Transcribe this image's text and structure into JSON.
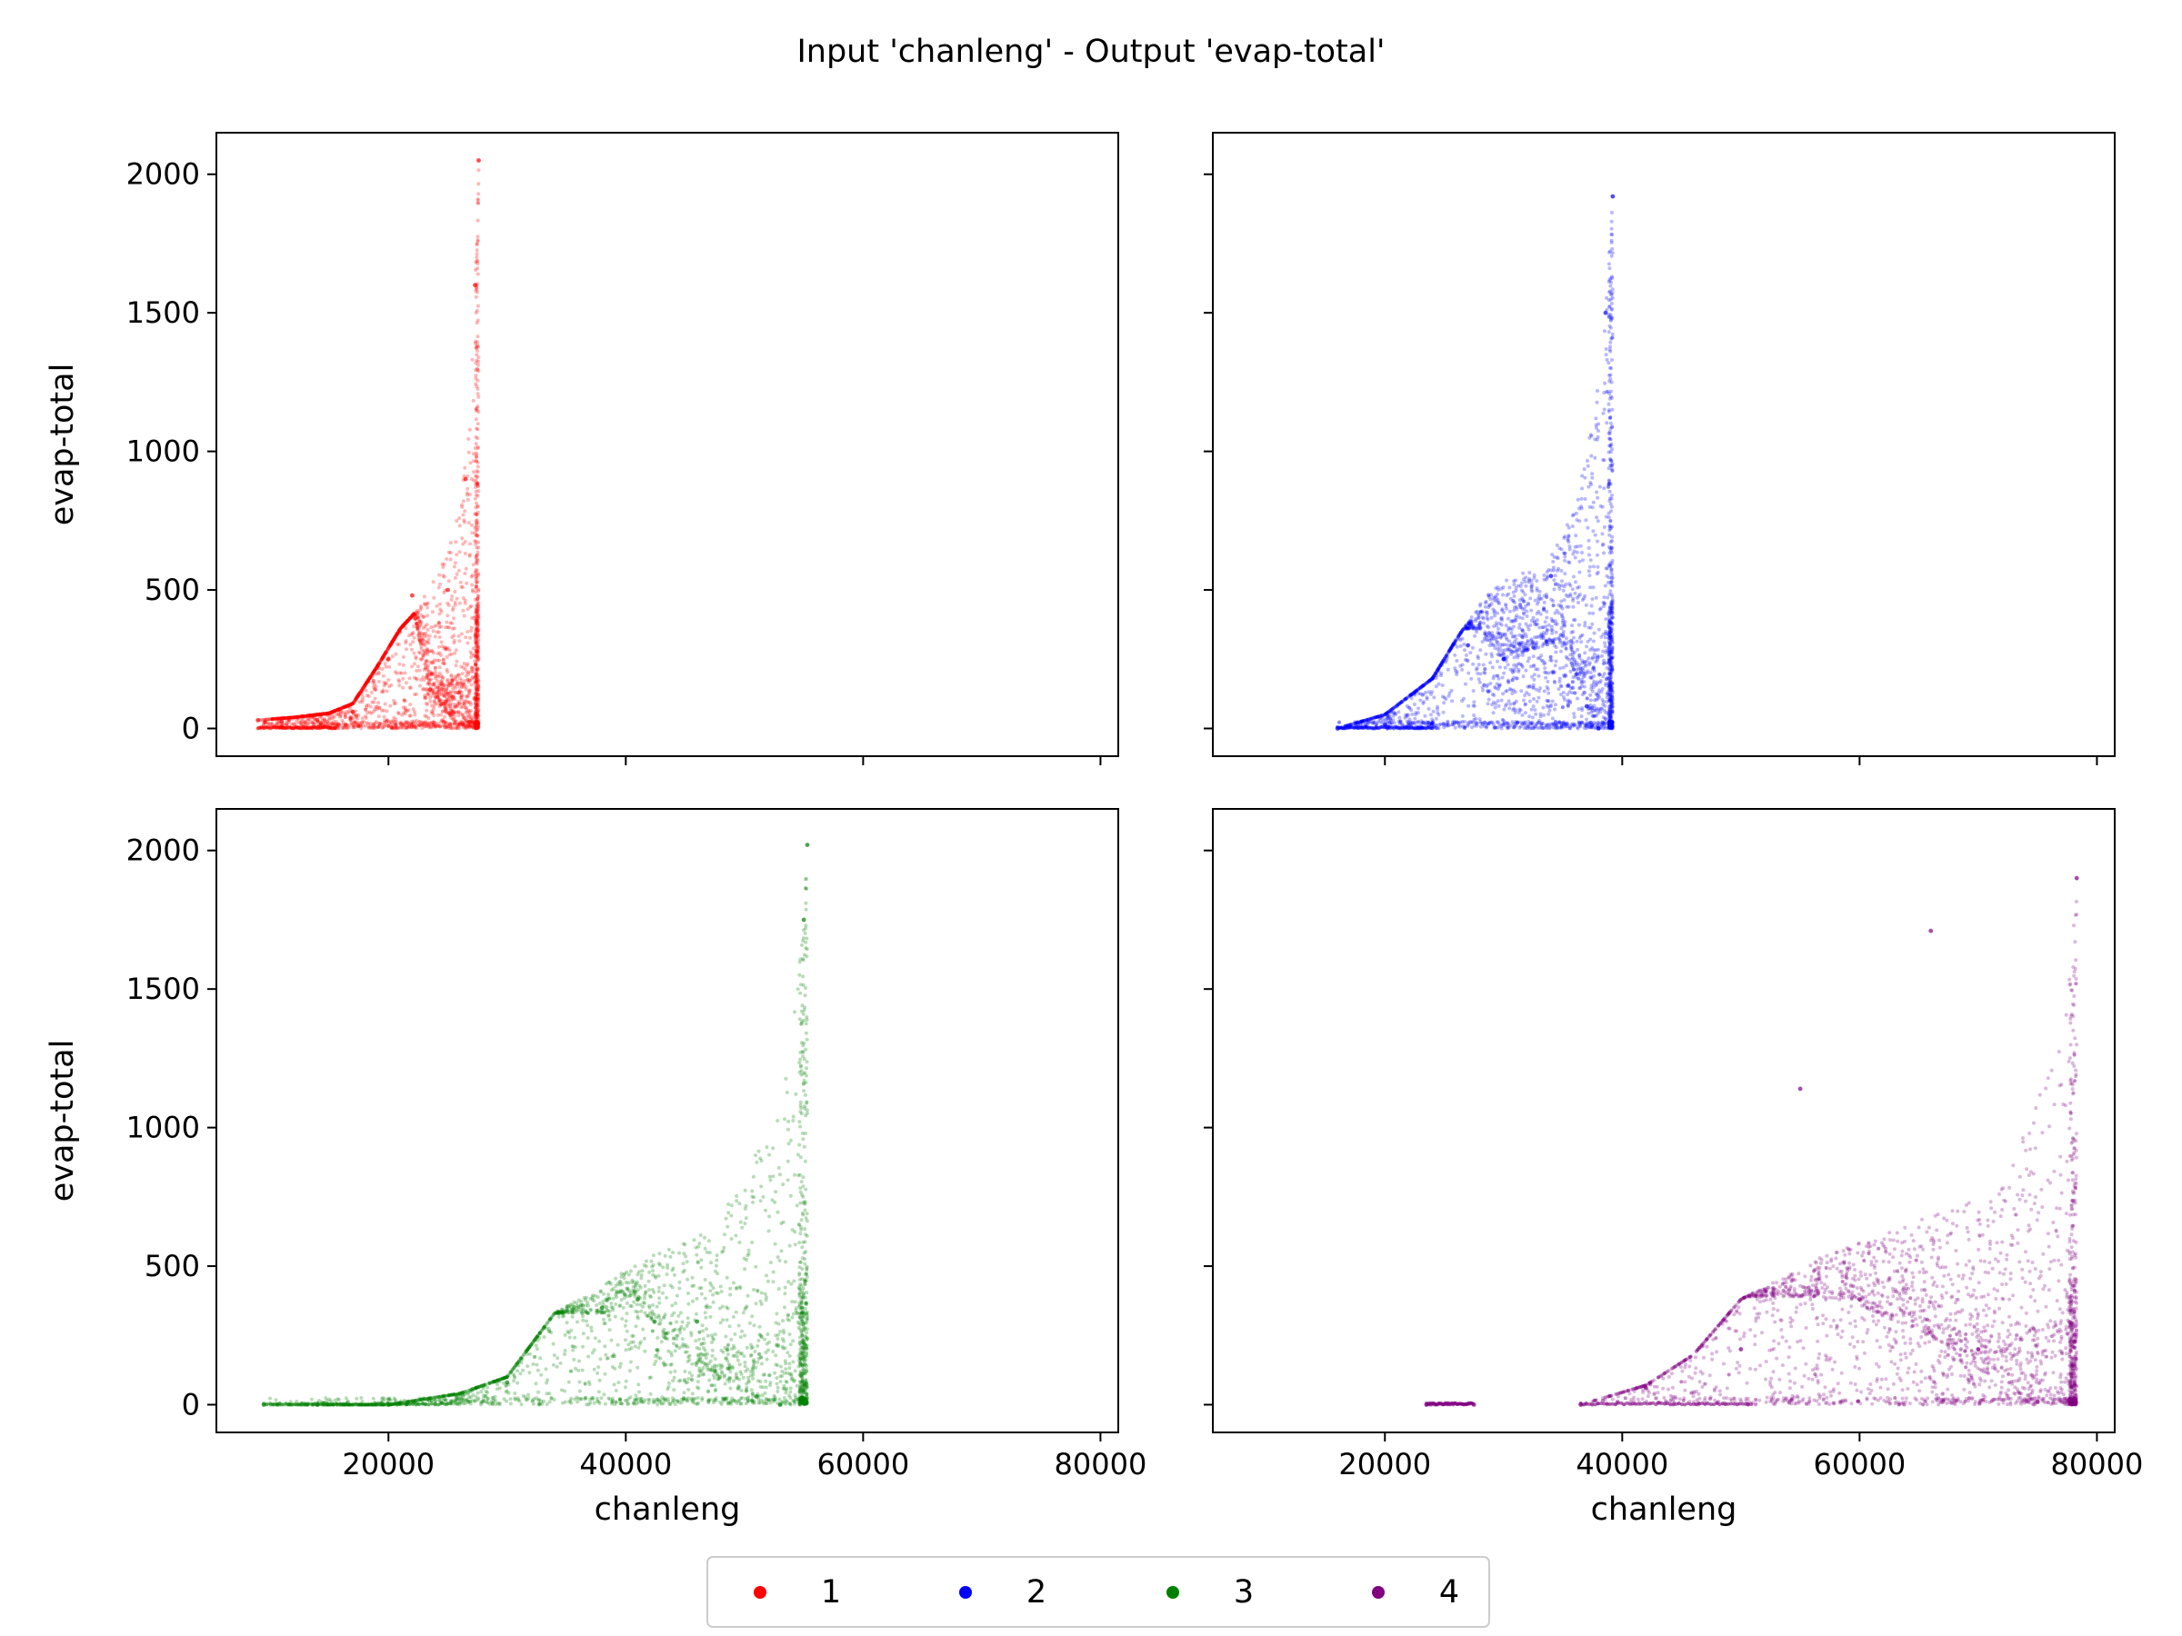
{
  "title": "Input 'chanleng' - Output 'evap-total'",
  "xlabel": "chanleng",
  "ylabel": "evap-total",
  "x_ticks": [
    20000,
    40000,
    60000,
    80000
  ],
  "y_ticks": [
    0,
    500,
    1000,
    1500,
    2000
  ],
  "legend": {
    "placement": "bottom-center",
    "entries": [
      "1",
      "2",
      "3",
      "4"
    ]
  },
  "chart_data": {
    "type": "scatter",
    "title": "Input 'chanleng' - Output 'evap-total'",
    "xlabel": "chanleng",
    "ylabel": "evap-total",
    "xlim": [
      5500,
      81500
    ],
    "ylim": [
      -100,
      2150
    ],
    "shared_x": true,
    "shared_y": true,
    "grid": false,
    "panels": [
      {
        "name": "1",
        "color": "#ff0000",
        "show_xlabel": false,
        "show_ylabel": true,
        "envelope": [
          [
            9000,
            30
          ],
          [
            12000,
            40
          ],
          [
            15000,
            55
          ],
          [
            17000,
            90
          ],
          [
            19000,
            220
          ],
          [
            21000,
            360
          ],
          [
            22500,
            430
          ],
          [
            24000,
            560
          ],
          [
            25000,
            650
          ],
          [
            26000,
            800
          ],
          [
            26800,
            1100
          ],
          [
            27300,
            1600
          ],
          [
            27600,
            2050
          ]
        ],
        "valley": [
          [
            22000,
            450
          ],
          [
            23500,
            140
          ],
          [
            24800,
            60
          ],
          [
            26000,
            10
          ],
          [
            26800,
            5
          ],
          [
            27500,
            0
          ]
        ],
        "floor": [
          [
            9000,
            0
          ],
          [
            27600,
            0
          ]
        ],
        "points": [
          [
            9000,
            30
          ],
          [
            11000,
            25
          ],
          [
            14000,
            30
          ],
          [
            17000,
            60
          ],
          [
            20000,
            250
          ],
          [
            22000,
            480
          ],
          [
            23500,
            140
          ],
          [
            25000,
            500
          ],
          [
            26500,
            900
          ],
          [
            27300,
            1600
          ],
          [
            27600,
            2050
          ]
        ]
      },
      {
        "name": "2",
        "color": "#0000ff",
        "show_xlabel": false,
        "show_ylabel": false,
        "envelope": [
          [
            16000,
            0
          ],
          [
            20000,
            50
          ],
          [
            24000,
            180
          ],
          [
            26000,
            320
          ],
          [
            28500,
            480
          ],
          [
            31000,
            560
          ],
          [
            33500,
            580
          ],
          [
            35500,
            750
          ],
          [
            37000,
            1000
          ],
          [
            38000,
            1250
          ],
          [
            38600,
            1500
          ],
          [
            39000,
            1800
          ],
          [
            39200,
            1920
          ]
        ],
        "valley": [
          [
            28000,
            360
          ],
          [
            30000,
            250
          ],
          [
            32000,
            280
          ],
          [
            35000,
            320
          ],
          [
            37000,
            80
          ],
          [
            38000,
            0
          ],
          [
            39000,
            0
          ]
        ],
        "floor": [
          [
            16000,
            0
          ],
          [
            39200,
            0
          ]
        ],
        "points": [
          [
            16000,
            0
          ],
          [
            20000,
            15
          ],
          [
            24000,
            20
          ],
          [
            27000,
            300
          ],
          [
            30000,
            250
          ],
          [
            34000,
            550
          ],
          [
            37000,
            80
          ],
          [
            38000,
            0
          ],
          [
            38600,
            1500
          ],
          [
            39200,
            1920
          ]
        ]
      },
      {
        "name": "3",
        "color": "#008000",
        "show_xlabel": true,
        "show_ylabel": true,
        "envelope": [
          [
            9500,
            0
          ],
          [
            20000,
            0
          ],
          [
            26000,
            40
          ],
          [
            30000,
            100
          ],
          [
            34000,
            330
          ],
          [
            38000,
            430
          ],
          [
            42000,
            540
          ],
          [
            46000,
            600
          ],
          [
            50000,
            800
          ],
          [
            52500,
            1100
          ],
          [
            54000,
            1400
          ],
          [
            55000,
            1750
          ],
          [
            55300,
            2020
          ]
        ],
        "valley": [
          [
            38000,
            330
          ],
          [
            41000,
            360
          ],
          [
            43000,
            250
          ],
          [
            47000,
            120
          ],
          [
            51000,
            30
          ],
          [
            53000,
            0
          ],
          [
            55000,
            0
          ]
        ],
        "floor": [
          [
            9500,
            0
          ],
          [
            55300,
            0
          ]
        ],
        "points": [
          [
            9500,
            0
          ],
          [
            14000,
            0
          ],
          [
            20000,
            0
          ],
          [
            30000,
            80
          ],
          [
            38000,
            350
          ],
          [
            41000,
            380
          ],
          [
            46000,
            300
          ],
          [
            51000,
            30
          ],
          [
            53000,
            0
          ],
          [
            55000,
            1750
          ],
          [
            55300,
            2020
          ]
        ]
      },
      {
        "name": "4",
        "color": "#800080",
        "show_xlabel": true,
        "show_ylabel": false,
        "envelope": [
          [
            36500,
            0
          ],
          [
            42000,
            70
          ],
          [
            46000,
            180
          ],
          [
            50000,
            380
          ],
          [
            54000,
            470
          ],
          [
            58000,
            560
          ],
          [
            62000,
            620
          ],
          [
            66000,
            680
          ],
          [
            70000,
            760
          ],
          [
            73000,
            900
          ],
          [
            75500,
            1150
          ],
          [
            77000,
            1400
          ],
          [
            78000,
            1700
          ],
          [
            78300,
            1900
          ]
        ],
        "valley": [
          [
            56000,
            390
          ],
          [
            59000,
            380
          ],
          [
            62000,
            320
          ],
          [
            66000,
            250
          ],
          [
            70000,
            130
          ],
          [
            73000,
            50
          ],
          [
            75000,
            10
          ],
          [
            77000,
            0
          ]
        ],
        "floor": [
          [
            36500,
            0
          ],
          [
            78300,
            0
          ]
        ],
        "clusters": [
          [
            23500,
            27500,
            0
          ]
        ],
        "points": [
          [
            23500,
            0
          ],
          [
            27500,
            0
          ],
          [
            36500,
            0
          ],
          [
            42000,
            60
          ],
          [
            50000,
            200
          ],
          [
            55000,
            1140
          ],
          [
            60000,
            380
          ],
          [
            66000,
            1710
          ],
          [
            70000,
            200
          ],
          [
            75000,
            10
          ],
          [
            78300,
            1900
          ]
        ]
      }
    ]
  }
}
